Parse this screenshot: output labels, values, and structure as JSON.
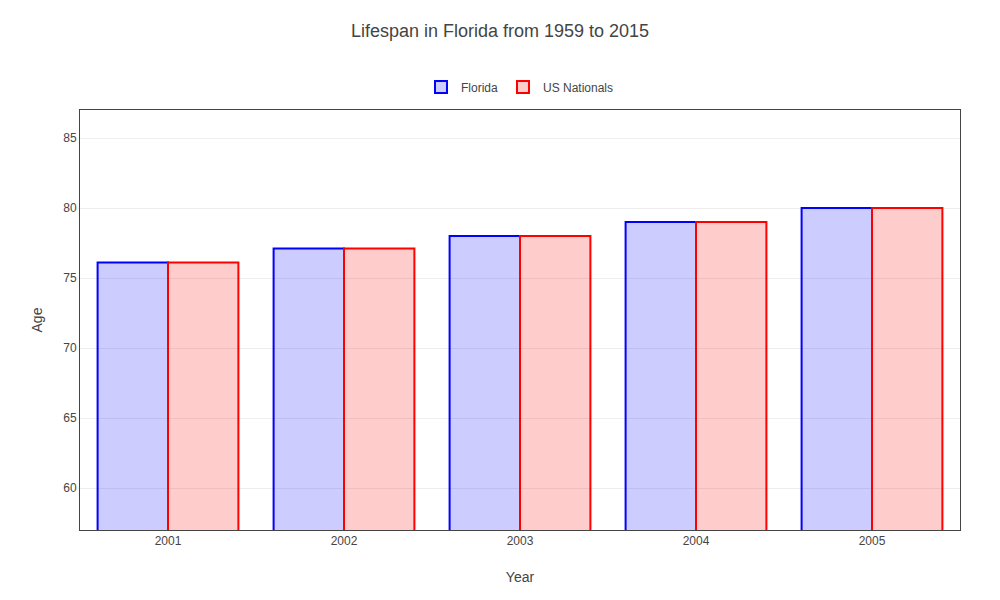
{
  "chart_data": {
    "type": "bar",
    "title": "Lifespan in Florida from 1959 to 2015",
    "x_label": "Year",
    "y_label": "Age",
    "categories": [
      "2001",
      "2002",
      "2003",
      "2004",
      "2005"
    ],
    "series": [
      {
        "name": "Florida",
        "color": "#0000ff",
        "values": [
          76.1,
          77.1,
          78.0,
          79.0,
          80.0
        ]
      },
      {
        "name": "US Nationals",
        "color": "#ff0000",
        "values": [
          76.1,
          77.1,
          78.0,
          79.0,
          80.0
        ]
      }
    ],
    "ylim": [
      57,
      87
    ],
    "yticks": [
      60,
      65,
      70,
      75,
      80,
      85
    ],
    "grid": true,
    "legend": "top"
  }
}
